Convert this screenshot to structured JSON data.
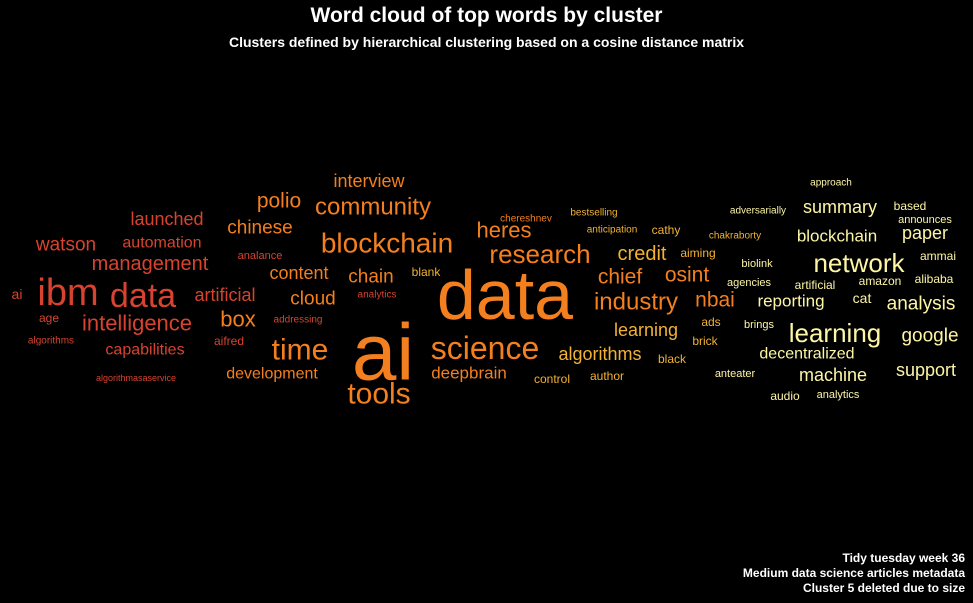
{
  "title": "Word cloud of top words by cluster",
  "subtitle": "Clusters defined by hierarchical clustering based on a cosine distance matrix",
  "caption": {
    "line1": "Tidy tuesday week 36",
    "line2": "Medium data science articles metadata",
    "line3": "Cluster 5 deleted due to size"
  },
  "chart_data": {
    "type": "wordcloud",
    "background": "#000000",
    "cluster_colors": {
      "1": "#d7432f",
      "2": "#f47f1e",
      "3": "#f2b233",
      "4": "#fdf6a5"
    },
    "words": [
      {
        "text": "ibm",
        "cluster": 1,
        "weight": 38
      },
      {
        "text": "data",
        "cluster": 1,
        "weight": 34
      },
      {
        "text": "intelligence",
        "cluster": 1,
        "weight": 22
      },
      {
        "text": "management",
        "cluster": 1,
        "weight": 20
      },
      {
        "text": "watson",
        "cluster": 1,
        "weight": 19
      },
      {
        "text": "launched",
        "cluster": 1,
        "weight": 18
      },
      {
        "text": "automation",
        "cluster": 1,
        "weight": 16
      },
      {
        "text": "capabilities",
        "cluster": 1,
        "weight": 16
      },
      {
        "text": "artificial",
        "cluster": 1,
        "weight": 18
      },
      {
        "text": "ai",
        "cluster": 1,
        "weight": 14
      },
      {
        "text": "age",
        "cluster": 1,
        "weight": 12
      },
      {
        "text": "algorithms",
        "cluster": 1,
        "weight": 10
      },
      {
        "text": "algorithmasaservice",
        "cluster": 1,
        "weight": 9
      },
      {
        "text": "aifred",
        "cluster": 1,
        "weight": 12
      },
      {
        "text": "analance",
        "cluster": 1,
        "weight": 11
      },
      {
        "text": "addressing",
        "cluster": 1,
        "weight": 10
      },
      {
        "text": "analytics",
        "cluster": 1,
        "weight": 10
      },
      {
        "text": "ai",
        "cluster": 2,
        "weight": 80
      },
      {
        "text": "data",
        "cluster": 2,
        "weight": 70
      },
      {
        "text": "science",
        "cluster": 2,
        "weight": 32
      },
      {
        "text": "tools",
        "cluster": 2,
        "weight": 30
      },
      {
        "text": "time",
        "cluster": 2,
        "weight": 30
      },
      {
        "text": "blockchain",
        "cluster": 2,
        "weight": 28
      },
      {
        "text": "research",
        "cluster": 2,
        "weight": 26
      },
      {
        "text": "community",
        "cluster": 2,
        "weight": 24
      },
      {
        "text": "industry",
        "cluster": 2,
        "weight": 24
      },
      {
        "text": "heres",
        "cluster": 2,
        "weight": 22
      },
      {
        "text": "box",
        "cluster": 2,
        "weight": 22
      },
      {
        "text": "polio",
        "cluster": 2,
        "weight": 21
      },
      {
        "text": "chief",
        "cluster": 2,
        "weight": 21
      },
      {
        "text": "osint",
        "cluster": 2,
        "weight": 21
      },
      {
        "text": "nbai",
        "cluster": 2,
        "weight": 21
      },
      {
        "text": "chinese",
        "cluster": 2,
        "weight": 19
      },
      {
        "text": "chain",
        "cluster": 2,
        "weight": 19
      },
      {
        "text": "cloud",
        "cluster": 2,
        "weight": 19
      },
      {
        "text": "content",
        "cluster": 2,
        "weight": 18
      },
      {
        "text": "interview",
        "cluster": 2,
        "weight": 18
      },
      {
        "text": "deepbrain",
        "cluster": 2,
        "weight": 17
      },
      {
        "text": "development",
        "cluster": 2,
        "weight": 16
      },
      {
        "text": "chereshnev",
        "cluster": 2,
        "weight": 10
      },
      {
        "text": "credit",
        "cluster": 3,
        "weight": 20
      },
      {
        "text": "learning",
        "cluster": 3,
        "weight": 18
      },
      {
        "text": "algorithms",
        "cluster": 3,
        "weight": 18
      },
      {
        "text": "blank",
        "cluster": 3,
        "weight": 12
      },
      {
        "text": "cathy",
        "cluster": 3,
        "weight": 12
      },
      {
        "text": "aiming",
        "cluster": 3,
        "weight": 12
      },
      {
        "text": "ads",
        "cluster": 3,
        "weight": 12
      },
      {
        "text": "brick",
        "cluster": 3,
        "weight": 12
      },
      {
        "text": "black",
        "cluster": 3,
        "weight": 12
      },
      {
        "text": "control",
        "cluster": 3,
        "weight": 12
      },
      {
        "text": "author",
        "cluster": 3,
        "weight": 12
      },
      {
        "text": "bestselling",
        "cluster": 3,
        "weight": 10
      },
      {
        "text": "anticipation",
        "cluster": 3,
        "weight": 10
      },
      {
        "text": "chakraborty",
        "cluster": 3,
        "weight": 10
      },
      {
        "text": "network",
        "cluster": 4,
        "weight": 26
      },
      {
        "text": "learning",
        "cluster": 4,
        "weight": 26
      },
      {
        "text": "analysis",
        "cluster": 4,
        "weight": 19
      },
      {
        "text": "google",
        "cluster": 4,
        "weight": 19
      },
      {
        "text": "support",
        "cluster": 4,
        "weight": 18
      },
      {
        "text": "machine",
        "cluster": 4,
        "weight": 18
      },
      {
        "text": "summary",
        "cluster": 4,
        "weight": 18
      },
      {
        "text": "paper",
        "cluster": 4,
        "weight": 18
      },
      {
        "text": "blockchain",
        "cluster": 4,
        "weight": 17
      },
      {
        "text": "reporting",
        "cluster": 4,
        "weight": 17
      },
      {
        "text": "decentralized",
        "cluster": 4,
        "weight": 16
      },
      {
        "text": "cat",
        "cluster": 4,
        "weight": 14
      },
      {
        "text": "audio",
        "cluster": 4,
        "weight": 12
      },
      {
        "text": "anteater",
        "cluster": 4,
        "weight": 11
      },
      {
        "text": "analytics",
        "cluster": 4,
        "weight": 11
      },
      {
        "text": "based",
        "cluster": 4,
        "weight": 12
      },
      {
        "text": "ammai",
        "cluster": 4,
        "weight": 12
      },
      {
        "text": "alibaba",
        "cluster": 4,
        "weight": 12
      },
      {
        "text": "amazon",
        "cluster": 4,
        "weight": 12
      },
      {
        "text": "artificial",
        "cluster": 4,
        "weight": 12
      },
      {
        "text": "agencies",
        "cluster": 4,
        "weight": 11
      },
      {
        "text": "brings",
        "cluster": 4,
        "weight": 11
      },
      {
        "text": "biolink",
        "cluster": 4,
        "weight": 11
      },
      {
        "text": "announces",
        "cluster": 4,
        "weight": 11
      },
      {
        "text": "adversarially",
        "cluster": 4,
        "weight": 10
      },
      {
        "text": "approach",
        "cluster": 4,
        "weight": 10
      }
    ]
  }
}
